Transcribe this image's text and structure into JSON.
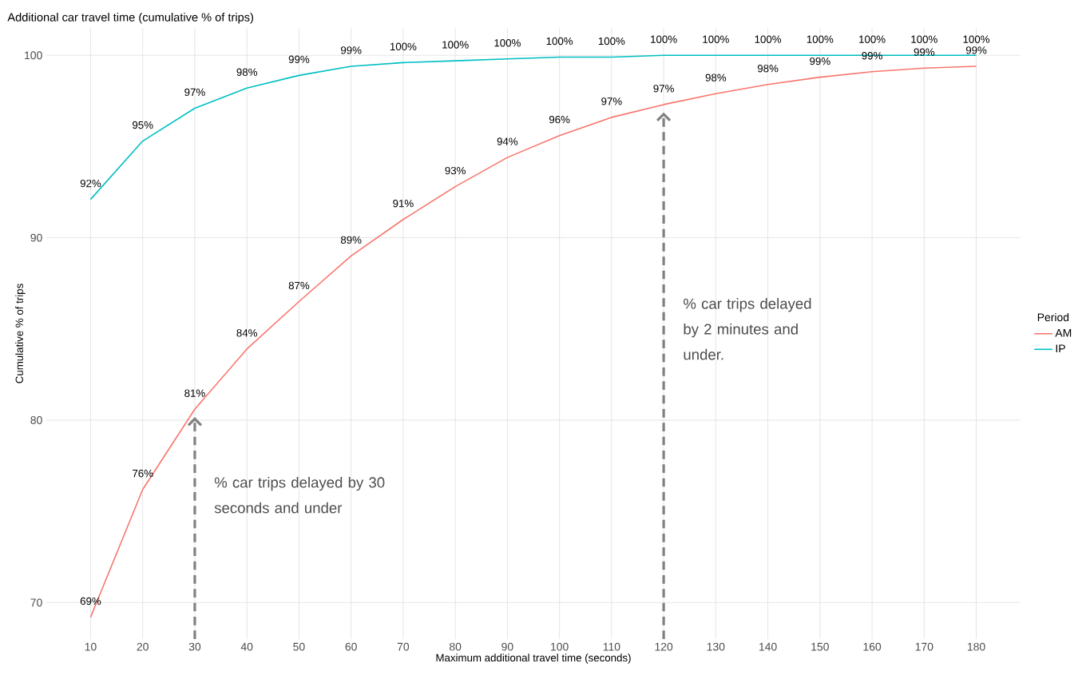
{
  "chart_data": {
    "type": "line",
    "title": "Additional car travel time (cumulative % of trips)",
    "xlabel": "Maximum additional travel time (seconds)",
    "ylabel": "Cumulative % of trips",
    "legend_title": "Period",
    "legend": "right",
    "grid": true,
    "x": [
      10,
      20,
      30,
      40,
      50,
      60,
      70,
      80,
      90,
      100,
      110,
      120,
      130,
      140,
      150,
      160,
      170,
      180
    ],
    "xlim": [
      1.5,
      188.5
    ],
    "xticks": [
      10,
      20,
      30,
      40,
      50,
      60,
      70,
      80,
      90,
      100,
      110,
      120,
      130,
      140,
      150,
      160,
      170,
      180
    ],
    "ylim": [
      68,
      101.5
    ],
    "yticks": [
      70,
      80,
      90,
      100
    ],
    "series": [
      {
        "name": "AM",
        "color": "#f8766d",
        "values": [
          69.2,
          76.2,
          80.6,
          83.9,
          86.5,
          89.0,
          91.0,
          92.8,
          94.4,
          95.6,
          96.6,
          97.3,
          97.9,
          98.4,
          98.8,
          99.1,
          99.3,
          99.4
        ],
        "value_labels": [
          "69%",
          "76%",
          "81%",
          "84%",
          "87%",
          "89%",
          "91%",
          "93%",
          "94%",
          "96%",
          "97%",
          "97%",
          "98%",
          "98%",
          "99%",
          "99%",
          "99%",
          "99%"
        ]
      },
      {
        "name": "IP",
        "color": "#00bfc4",
        "values": [
          92.1,
          95.3,
          97.1,
          98.2,
          98.9,
          99.4,
          99.6,
          99.7,
          99.8,
          99.9,
          99.9,
          100,
          100,
          100,
          100,
          100,
          100,
          100
        ],
        "value_labels": [
          "92%",
          "95%",
          "97%",
          "98%",
          "99%",
          "99%",
          "100%",
          "100%",
          "100%",
          "100%",
          "100%",
          "100%",
          "100%",
          "100%",
          "100%",
          "100%",
          "100%",
          "100%"
        ]
      }
    ],
    "ref_lines": [
      {
        "axis": "x",
        "value": 30,
        "label": "% car trips delayed by 30 seconds and under",
        "color": "#808080",
        "line_style": "dashed"
      },
      {
        "axis": "x",
        "value": 120,
        "label": "% car trips delayed by 2 minutes and under.",
        "color": "#808080",
        "line_style": "dashed"
      }
    ]
  }
}
